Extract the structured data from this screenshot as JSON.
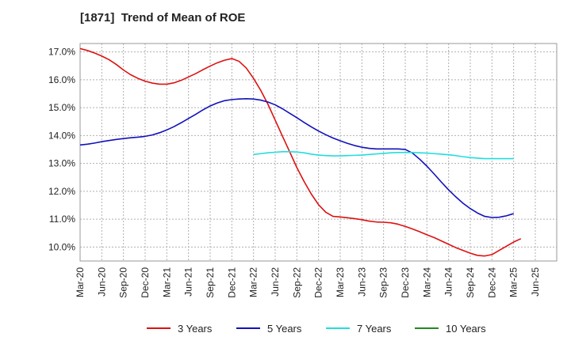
{
  "chart_data": {
    "type": "line",
    "title": "[1871]  Trend of Mean of ROE",
    "xlabel": "",
    "ylabel": "",
    "y_unit": "%",
    "x_ticks": [
      "Mar-20",
      "Jun-20",
      "Sep-20",
      "Dec-20",
      "Mar-21",
      "Jun-21",
      "Sep-21",
      "Dec-21",
      "Mar-22",
      "Jun-22",
      "Sep-22",
      "Dec-22",
      "Mar-23",
      "Jun-23",
      "Sep-23",
      "Dec-23",
      "Mar-24",
      "Jun-24",
      "Sep-24",
      "Dec-24",
      "Mar-25",
      "Jun-25"
    ],
    "y_ticks": [
      "10.0%",
      "11.0%",
      "12.0%",
      "13.0%",
      "14.0%",
      "15.0%",
      "16.0%",
      "17.0%"
    ],
    "ylim": [
      9.5,
      17.3
    ],
    "grid": true,
    "legend_position": "bottom",
    "series": [
      {
        "name": "3 Years",
        "color": "#dd1111",
        "points": [
          [
            "Mar-20",
            17.12
          ],
          [
            "Apr-20",
            17.05
          ],
          [
            "May-20",
            16.96
          ],
          [
            "Jun-20",
            16.85
          ],
          [
            "Jul-20",
            16.72
          ],
          [
            "Aug-20",
            16.55
          ],
          [
            "Sep-20",
            16.35
          ],
          [
            "Oct-20",
            16.18
          ],
          [
            "Nov-20",
            16.05
          ],
          [
            "Dec-20",
            15.95
          ],
          [
            "Jan-21",
            15.88
          ],
          [
            "Feb-21",
            15.84
          ],
          [
            "Mar-21",
            15.84
          ],
          [
            "Apr-21",
            15.89
          ],
          [
            "May-21",
            15.98
          ],
          [
            "Jun-21",
            16.1
          ],
          [
            "Jul-21",
            16.22
          ],
          [
            "Aug-21",
            16.36
          ],
          [
            "Sep-21",
            16.49
          ],
          [
            "Oct-21",
            16.61
          ],
          [
            "Nov-21",
            16.7
          ],
          [
            "Dec-21",
            16.76
          ],
          [
            "Jan-22",
            16.66
          ],
          [
            "Feb-22",
            16.42
          ],
          [
            "Mar-22",
            16.05
          ],
          [
            "Apr-22",
            15.62
          ],
          [
            "May-22",
            15.12
          ],
          [
            "Jun-22",
            14.55
          ],
          [
            "Jul-22",
            13.98
          ],
          [
            "Aug-22",
            13.42
          ],
          [
            "Sep-22",
            12.85
          ],
          [
            "Oct-22",
            12.35
          ],
          [
            "Nov-22",
            11.9
          ],
          [
            "Dec-22",
            11.52
          ],
          [
            "Jan-23",
            11.25
          ],
          [
            "Feb-23",
            11.1
          ],
          [
            "Mar-23",
            11.08
          ],
          [
            "Apr-23",
            11.05
          ],
          [
            "May-23",
            11.02
          ],
          [
            "Jun-23",
            10.98
          ],
          [
            "Jul-23",
            10.93
          ],
          [
            "Aug-23",
            10.9
          ],
          [
            "Sep-23",
            10.89
          ],
          [
            "Oct-23",
            10.87
          ],
          [
            "Nov-23",
            10.82
          ],
          [
            "Dec-23",
            10.74
          ],
          [
            "Jan-24",
            10.65
          ],
          [
            "Feb-24",
            10.55
          ],
          [
            "Mar-24",
            10.44
          ],
          [
            "Apr-24",
            10.34
          ],
          [
            "May-24",
            10.22
          ],
          [
            "Jun-24",
            10.1
          ],
          [
            "Jul-24",
            9.98
          ],
          [
            "Aug-24",
            9.88
          ],
          [
            "Sep-24",
            9.78
          ],
          [
            "Oct-24",
            9.7
          ],
          [
            "Nov-24",
            9.68
          ],
          [
            "Dec-24",
            9.73
          ],
          [
            "Jan-25",
            9.88
          ],
          [
            "Feb-25",
            10.03
          ],
          [
            "Mar-25",
            10.18
          ],
          [
            "Apr-25",
            10.3
          ]
        ]
      },
      {
        "name": "5 Years",
        "color": "#1111bb",
        "points": [
          [
            "Mar-20",
            13.66
          ],
          [
            "Apr-20",
            13.69
          ],
          [
            "May-20",
            13.73
          ],
          [
            "Jun-20",
            13.78
          ],
          [
            "Jul-20",
            13.82
          ],
          [
            "Aug-20",
            13.86
          ],
          [
            "Sep-20",
            13.89
          ],
          [
            "Oct-20",
            13.92
          ],
          [
            "Nov-20",
            13.94
          ],
          [
            "Dec-20",
            13.97
          ],
          [
            "Jan-21",
            14.02
          ],
          [
            "Feb-21",
            14.1
          ],
          [
            "Mar-21",
            14.2
          ],
          [
            "Apr-21",
            14.32
          ],
          [
            "May-21",
            14.46
          ],
          [
            "Jun-21",
            14.61
          ],
          [
            "Jul-21",
            14.76
          ],
          [
            "Aug-21",
            14.92
          ],
          [
            "Sep-21",
            15.06
          ],
          [
            "Oct-21",
            15.17
          ],
          [
            "Nov-21",
            15.25
          ],
          [
            "Dec-21",
            15.29
          ],
          [
            "Jan-22",
            15.31
          ],
          [
            "Feb-22",
            15.32
          ],
          [
            "Mar-22",
            15.31
          ],
          [
            "Apr-22",
            15.27
          ],
          [
            "May-22",
            15.2
          ],
          [
            "Jun-22",
            15.1
          ],
          [
            "Jul-22",
            14.96
          ],
          [
            "Aug-22",
            14.8
          ],
          [
            "Sep-22",
            14.64
          ],
          [
            "Oct-22",
            14.47
          ],
          [
            "Nov-22",
            14.31
          ],
          [
            "Dec-22",
            14.16
          ],
          [
            "Jan-23",
            14.03
          ],
          [
            "Feb-23",
            13.91
          ],
          [
            "Mar-23",
            13.81
          ],
          [
            "Apr-23",
            13.72
          ],
          [
            "May-23",
            13.64
          ],
          [
            "Jun-23",
            13.58
          ],
          [
            "Jul-23",
            13.54
          ],
          [
            "Aug-23",
            13.52
          ],
          [
            "Sep-23",
            13.52
          ],
          [
            "Oct-23",
            13.52
          ],
          [
            "Nov-23",
            13.52
          ],
          [
            "Dec-23",
            13.5
          ],
          [
            "Jan-24",
            13.37
          ],
          [
            "Feb-24",
            13.15
          ],
          [
            "Mar-24",
            12.9
          ],
          [
            "Apr-24",
            12.62
          ],
          [
            "May-24",
            12.33
          ],
          [
            "Jun-24",
            12.05
          ],
          [
            "Jul-24",
            11.8
          ],
          [
            "Aug-24",
            11.57
          ],
          [
            "Sep-24",
            11.38
          ],
          [
            "Oct-24",
            11.22
          ],
          [
            "Nov-24",
            11.1
          ],
          [
            "Dec-24",
            11.06
          ],
          [
            "Jan-25",
            11.07
          ],
          [
            "Feb-25",
            11.12
          ],
          [
            "Mar-25",
            11.2
          ]
        ]
      },
      {
        "name": "7 Years",
        "color": "#22dddd",
        "points": [
          [
            "Mar-22",
            13.32
          ],
          [
            "Apr-22",
            13.35
          ],
          [
            "May-22",
            13.38
          ],
          [
            "Jun-22",
            13.4
          ],
          [
            "Jul-22",
            13.42
          ],
          [
            "Aug-22",
            13.42
          ],
          [
            "Sep-22",
            13.41
          ],
          [
            "Oct-22",
            13.38
          ],
          [
            "Nov-22",
            13.33
          ],
          [
            "Dec-22",
            13.3
          ],
          [
            "Jan-23",
            13.28
          ],
          [
            "Feb-23",
            13.27
          ],
          [
            "Mar-23",
            13.27
          ],
          [
            "Apr-23",
            13.28
          ],
          [
            "May-23",
            13.29
          ],
          [
            "Jun-23",
            13.3
          ],
          [
            "Jul-23",
            13.32
          ],
          [
            "Aug-23",
            13.34
          ],
          [
            "Sep-23",
            13.36
          ],
          [
            "Oct-23",
            13.38
          ],
          [
            "Nov-23",
            13.39
          ],
          [
            "Dec-23",
            13.39
          ],
          [
            "Jan-24",
            13.39
          ],
          [
            "Feb-24",
            13.38
          ],
          [
            "Mar-24",
            13.37
          ],
          [
            "Apr-24",
            13.35
          ],
          [
            "May-24",
            13.33
          ],
          [
            "Jun-24",
            13.31
          ],
          [
            "Jul-24",
            13.28
          ],
          [
            "Aug-24",
            13.24
          ],
          [
            "Sep-24",
            13.21
          ],
          [
            "Oct-24",
            13.19
          ],
          [
            "Nov-24",
            13.17
          ],
          [
            "Dec-24",
            13.17
          ],
          [
            "Jan-25",
            13.17
          ],
          [
            "Feb-25",
            13.17
          ],
          [
            "Mar-25",
            13.17
          ]
        ]
      },
      {
        "name": "10 Years",
        "color": "#228822",
        "points": []
      }
    ]
  }
}
